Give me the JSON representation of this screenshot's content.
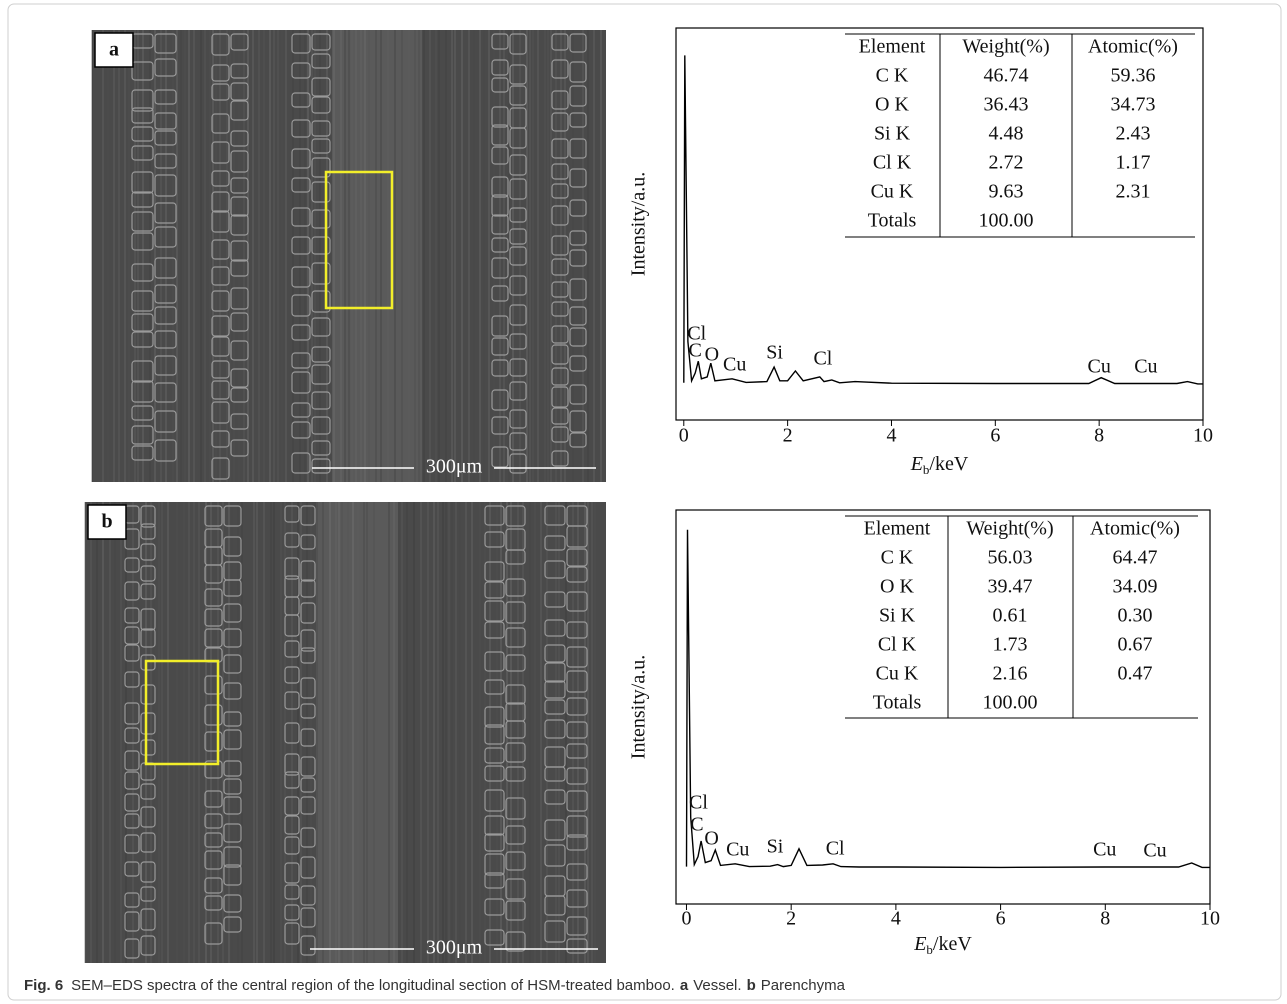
{
  "panels": [
    {
      "label": "a",
      "scale_bar": "300μm",
      "spectrum": {
        "type": "line",
        "ylabel": "Intensity/a.u.",
        "xlabel": {
          "symbol": "E",
          "subscript": "b",
          "unit": "/keV"
        },
        "xlim": [
          -0.15,
          10
        ],
        "ylim": [
          0,
          100
        ],
        "xticks": [
          0,
          2,
          4,
          6,
          8,
          10
        ],
        "color": "#000000",
        "x": [
          0,
          0.02,
          0.08,
          0.15,
          0.22,
          0.28,
          0.34,
          0.45,
          0.52,
          0.6,
          0.93,
          1.2,
          1.6,
          1.74,
          1.85,
          2.0,
          2.15,
          2.3,
          2.62,
          2.7,
          2.85,
          3.0,
          3.3,
          4,
          6,
          7.8,
          8.04,
          8.3,
          9.5,
          9.7,
          9.9,
          10
        ],
        "y": [
          9.5,
          93,
          20,
          10,
          12,
          15,
          10.5,
          11,
          14.5,
          10,
          10.5,
          9.6,
          9.8,
          13.5,
          10,
          10,
          12.5,
          10,
          11,
          9.8,
          10.2,
          9.5,
          9.8,
          9.4,
          9.3,
          9.3,
          10.8,
          9.3,
          9.3,
          9.8,
          9.2,
          9.2
        ],
        "annotations": [
          {
            "text": "Cl",
            "x": 0.25
          },
          {
            "text": "C",
            "x": 0.22
          },
          {
            "text": "O",
            "x": 0.54
          },
          {
            "text": "Cu",
            "x": 0.98
          },
          {
            "text": "Si",
            "x": 1.75
          },
          {
            "text": "Cl",
            "x": 2.68
          },
          {
            "text": "Cu",
            "x": 8.0
          },
          {
            "text": "Cu",
            "x": 8.9
          }
        ]
      },
      "table": {
        "header": [
          "Element",
          "Weight(%)",
          "Atomic(%)"
        ],
        "rows": [
          [
            "C K",
            "46.74",
            "59.36"
          ],
          [
            "O K",
            "36.43",
            "34.73"
          ],
          [
            "Si K",
            "4.48",
            "2.43"
          ],
          [
            "Cl K",
            "2.72",
            "1.17"
          ],
          [
            "Cu K",
            "9.63",
            "2.31"
          ],
          [
            "Totals",
            "100.00",
            ""
          ]
        ]
      }
    },
    {
      "label": "b",
      "scale_bar": "300μm",
      "spectrum": {
        "type": "line",
        "ylabel": "Intensity/a.u.",
        "xlabel": {
          "symbol": "E",
          "subscript": "b",
          "unit": "/keV"
        },
        "xlim": [
          -0.2,
          10
        ],
        "ylim": [
          0,
          100
        ],
        "xticks": [
          0,
          2,
          4,
          6,
          8,
          10
        ],
        "color": "#000000",
        "x": [
          0,
          0.02,
          0.08,
          0.15,
          0.22,
          0.28,
          0.36,
          0.47,
          0.55,
          0.65,
          0.93,
          1.2,
          1.6,
          1.74,
          1.85,
          2.0,
          2.15,
          2.3,
          2.6,
          2.8,
          2.95,
          3.3,
          4,
          6,
          8,
          9.4,
          9.65,
          9.85,
          10
        ],
        "y": [
          9.5,
          95,
          22,
          10,
          12,
          16,
          10.5,
          11,
          13.7,
          9.8,
          10.2,
          9.5,
          9.6,
          10,
          9.5,
          9.8,
          14,
          9.8,
          9.9,
          10.2,
          9.5,
          9.4,
          9.4,
          9.3,
          9.4,
          9.4,
          10.4,
          9.3,
          9.3
        ],
        "annotations": [
          {
            "text": "Cl",
            "x": 0.23
          },
          {
            "text": "C",
            "x": 0.2
          },
          {
            "text": "O",
            "x": 0.48
          },
          {
            "text": "Cu",
            "x": 0.98
          },
          {
            "text": "Si",
            "x": 1.69
          },
          {
            "text": "Cl",
            "x": 2.84
          },
          {
            "text": "Cu",
            "x": 7.99
          },
          {
            "text": "Cu",
            "x": 8.95
          }
        ]
      },
      "table": {
        "header": [
          "Element",
          "Weight(%)",
          "Atomic(%)"
        ],
        "rows": [
          [
            "C K",
            "56.03",
            "64.47"
          ],
          [
            "O K",
            "39.47",
            "34.09"
          ],
          [
            "Si K",
            "0.61",
            "0.30"
          ],
          [
            "Cl K",
            "1.73",
            "0.67"
          ],
          [
            "Cu K",
            "2.16",
            "0.47"
          ],
          [
            "Totals",
            "100.00",
            ""
          ]
        ]
      }
    }
  ],
  "caption": {
    "figure": "Fig. 6",
    "text": "SEM–EDS spectra of the central region of the longitudinal section of HSM-treated bamboo.",
    "parts": [
      {
        "label": "a",
        "text": "Vessel."
      },
      {
        "label": "b",
        "text": "Parenchyma"
      }
    ]
  }
}
